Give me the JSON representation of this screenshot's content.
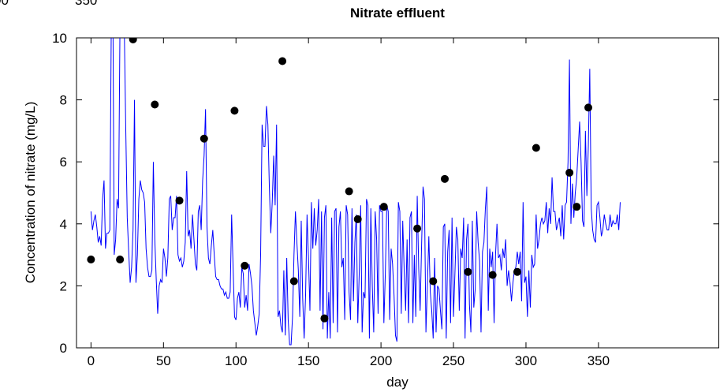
{
  "fragments": [
    "00",
    "350"
  ],
  "chart_data": {
    "type": "line",
    "title": "Nitrate effluent",
    "x_label": "day",
    "y_label": "Concentration of nitrate (mg/L)",
    "xlim": [
      -10,
      433
    ],
    "ylim": [
      0,
      10
    ],
    "xticks": [
      0,
      50,
      100,
      150,
      200,
      250,
      300,
      350
    ],
    "yticks": [
      0,
      2,
      4,
      6,
      8,
      10
    ],
    "series": [
      {
        "type": "line",
        "color": "#0000ff",
        "x": [
          0,
          1,
          2,
          3,
          4,
          5,
          6,
          7,
          8,
          9,
          10,
          11,
          12,
          13,
          14,
          15,
          16,
          17,
          18,
          19,
          20,
          21,
          22,
          23,
          24,
          25,
          26,
          27,
          28,
          29,
          30,
          31,
          32,
          33,
          34,
          35,
          36,
          37,
          38,
          39,
          40,
          41,
          42,
          43,
          44,
          45,
          46,
          47,
          48,
          49,
          50,
          51,
          52,
          53,
          54,
          55,
          56,
          57,
          58,
          59,
          60,
          61,
          62,
          63,
          64,
          65,
          66,
          67,
          68,
          69,
          70,
          71,
          72,
          73,
          74,
          75,
          76,
          77,
          78,
          79,
          80,
          81,
          82,
          83,
          84,
          85,
          86,
          87,
          88,
          89,
          90,
          91,
          92,
          93,
          94,
          95,
          96,
          97,
          98,
          99,
          100,
          101,
          102,
          103,
          104,
          105,
          106,
          107,
          108,
          109,
          110,
          111,
          112,
          113,
          114,
          115,
          116,
          117,
          118,
          119,
          120,
          121,
          122,
          123,
          124,
          125,
          126,
          127,
          128,
          129,
          130,
          131,
          132,
          133,
          134,
          135,
          136,
          137,
          138,
          139,
          140,
          141,
          142,
          143,
          144,
          145,
          146,
          147,
          148,
          149,
          150,
          151,
          152,
          153,
          154,
          155,
          156,
          157,
          158,
          159,
          160,
          161,
          162,
          163,
          164,
          165,
          166,
          167,
          168,
          169,
          170,
          171,
          172,
          173,
          174,
          175,
          176,
          177,
          178,
          179,
          180,
          181,
          182,
          183,
          184,
          185,
          186,
          187,
          188,
          189,
          190,
          191,
          192,
          193,
          194,
          195,
          196,
          197,
          198,
          199,
          200,
          201,
          202,
          203,
          204,
          205,
          206,
          207,
          208,
          209,
          210,
          211,
          212,
          213,
          214,
          215,
          216,
          217,
          218,
          219,
          220,
          221,
          222,
          223,
          224,
          225,
          226,
          227,
          228,
          229,
          230,
          231,
          232,
          233,
          234,
          235,
          236,
          237,
          238,
          239,
          240,
          241,
          242,
          243,
          244,
          245,
          246,
          247,
          248,
          249,
          250,
          251,
          252,
          253,
          254,
          255,
          256,
          257,
          258,
          259,
          260,
          261,
          262,
          263,
          264,
          265,
          266,
          267,
          268,
          269,
          270,
          271,
          272,
          273,
          274,
          275,
          276,
          277,
          278,
          279,
          280,
          281,
          282,
          283,
          284,
          285,
          286,
          287,
          288,
          289,
          290,
          291,
          292,
          293,
          294,
          295,
          296,
          297,
          298,
          299,
          300,
          301,
          302,
          303,
          304,
          305,
          306,
          307,
          308,
          309,
          310,
          311,
          312,
          313,
          314,
          315,
          316,
          317,
          318,
          319,
          320,
          321,
          322,
          323,
          324,
          325,
          326,
          327,
          328,
          329,
          330,
          331,
          332,
          333,
          334,
          335,
          336,
          337,
          338,
          339,
          340,
          341,
          342,
          343,
          344,
          345,
          346,
          347,
          348,
          349,
          350,
          351,
          352,
          353,
          354,
          355,
          356,
          357,
          358,
          359,
          360,
          361,
          362,
          363,
          364,
          365
        ],
        "values": [
          4.4,
          3.8,
          4.1,
          4.3,
          3.9,
          3.4,
          3.6,
          3.3,
          4.8,
          5.4,
          3.2,
          3.7,
          3.7,
          3.8,
          10.5,
          12,
          3.0,
          3.5,
          4.8,
          4.5,
          10.5,
          11,
          12,
          10.2,
          7,
          4.2,
          3.1,
          2.1,
          2.6,
          3.8,
          8.0,
          2.1,
          3.0,
          4.8,
          5.4,
          5.1,
          5.0,
          4.7,
          3.2,
          2.6,
          2.3,
          2.3,
          2.5,
          6.0,
          3.5,
          2.2,
          1.1,
          2.0,
          2.2,
          2.1,
          3.2,
          2.9,
          2.3,
          2.9,
          4.8,
          4.9,
          3.8,
          4.2,
          4.2,
          4.9,
          3.0,
          2.8,
          2.9,
          2.6,
          2.8,
          3.4,
          5.7,
          3.6,
          3.8,
          3.2,
          4.3,
          3.5,
          2.7,
          2.5,
          4.4,
          4.6,
          3.8,
          5.4,
          6.2,
          7.7,
          3.9,
          2.9,
          2.7,
          3.3,
          3.8,
          3.0,
          2.3,
          2.2,
          2.2,
          2.0,
          1.9,
          1.9,
          1.7,
          1.8,
          1.6,
          1.6,
          1.8,
          4.3,
          2.6,
          1.0,
          0.9,
          1.6,
          1.8,
          1.3,
          2.6,
          2.4,
          1.3,
          1.7,
          1.2,
          2.7,
          2.4,
          2.0,
          1.2,
          0.8,
          0.4,
          0.7,
          1.1,
          3.0,
          7.2,
          6.5,
          6.5,
          7.8,
          7.2,
          5.2,
          3.7,
          4.7,
          6.2,
          4.6,
          7.2,
          1.0,
          1.2,
          0.7,
          0.5,
          2.5,
          0.4,
          2.9,
          0.9,
          0.1,
          0.1,
          1.0,
          3.0,
          4.4,
          3.4,
          2.5,
          1.0,
          4.1,
          1.6,
          0.3,
          1.7,
          4.3,
          2.9,
          1.2,
          4.7,
          3.2,
          4.5,
          3.3,
          3.8,
          4.8,
          1.2,
          4.4,
          0.6,
          4.2,
          4.6,
          0.3,
          1.8,
          0.3,
          4.2,
          0.8,
          4.4,
          4.5,
          0.5,
          3.9,
          4.4,
          2.6,
          2.9,
          0.9,
          4.6,
          4.3,
          1.8,
          0.9,
          4.5,
          1.5,
          3.4,
          4.3,
          0.8,
          2.4,
          4.6,
          0.5,
          1.8,
          1.6,
          4.8,
          4.6,
          0.3,
          4.5,
          2.0,
          0.5,
          4.4,
          3.5,
          1.1,
          4.6,
          4.4,
          4.4,
          0.8,
          2.4,
          4.6,
          4.4,
          0.9,
          3.2,
          2.7,
          1.7,
          0.4,
          0.2,
          4.7,
          4.4,
          1.1,
          4.1,
          2.5,
          1.2,
          3.5,
          0.8,
          4.2,
          4.4,
          0.8,
          3.0,
          1.0,
          4.9,
          2.6,
          1.2,
          3.3,
          5.2,
          4.8,
          0.5,
          2.0,
          3.6,
          1.8,
          1.2,
          0.3,
          2.9,
          0.5,
          2.0,
          1.9,
          1.2,
          0.6,
          3.9,
          4.0,
          0.3,
          3.1,
          3.8,
          0.8,
          4.2,
          1.0,
          2.4,
          3.9,
          3.5,
          1.2,
          3.2,
          2.9,
          4.2,
          0.3,
          3.5,
          4.0,
          1.4,
          0.5,
          4.1,
          1.3,
          1.9,
          4.4,
          3.4,
          2.8,
          0.5,
          3.1,
          3.4,
          4.5,
          5.2,
          1.2,
          3.2,
          2.6,
          3.1,
          0.8,
          3.0,
          4.0,
          2.9,
          3.0,
          2.5,
          3.2,
          2.9,
          3.5,
          2.0,
          2.5,
          2.1,
          1.5,
          2.1,
          2.5,
          2.6,
          3.1,
          2.7,
          3.1,
          1.5,
          4.7,
          2.1,
          2.3,
          1.0,
          2.5,
          1.3,
          3.0,
          2.6,
          2.7,
          4.3,
          3.2,
          3.5,
          4.0,
          4.2,
          4.0,
          4.1,
          4.7,
          3.7,
          4.5,
          4.0,
          5.5,
          4.4,
          4.4,
          3.8,
          4.0,
          4.2,
          3.6,
          4.6,
          3.5,
          4.6,
          4.7,
          6.0,
          9.3,
          4.0,
          5.3,
          4.2,
          5.0,
          5.5,
          6.4,
          7.3,
          6.0,
          4.1,
          3.9,
          7.0,
          4.9,
          6.5,
          9.0,
          4.5,
          3.8,
          3.5,
          3.4,
          4.6,
          4.7,
          4.2,
          3.6,
          3.8,
          4.3,
          4.0,
          3.8,
          3.8,
          4.3,
          3.9,
          4.1,
          4.0,
          4.0,
          4.3,
          3.8,
          4.7
        ]
      },
      {
        "type": "scatter",
        "color": "#000000",
        "x": [
          0,
          20,
          29,
          44,
          61,
          78,
          99,
          106,
          132,
          140,
          161,
          178,
          184,
          202,
          225,
          236,
          244,
          260,
          277,
          294,
          307,
          330,
          335,
          343
        ],
        "values": [
          2.85,
          2.85,
          9.95,
          7.85,
          4.75,
          6.75,
          7.65,
          2.65,
          9.25,
          2.15,
          0.95,
          5.05,
          4.15,
          4.55,
          3.85,
          2.15,
          5.45,
          2.45,
          2.35,
          2.45,
          6.45,
          5.65,
          4.55,
          7.75
        ]
      }
    ]
  }
}
